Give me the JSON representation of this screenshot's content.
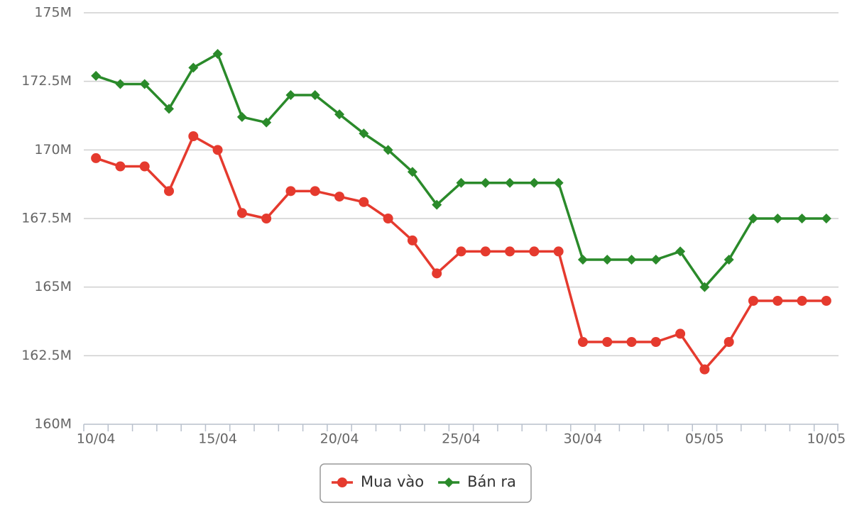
{
  "chart_data": {
    "type": "line",
    "categories": [
      "10/04",
      null,
      null,
      null,
      null,
      "15/04",
      null,
      null,
      null,
      null,
      "20/04",
      null,
      null,
      null,
      null,
      "25/04",
      null,
      null,
      null,
      null,
      "30/04",
      null,
      null,
      null,
      null,
      "05/05",
      null,
      null,
      null,
      null,
      "10/05"
    ],
    "series": [
      {
        "name": "Mua vào",
        "color": "#e53a2e",
        "marker": "circle",
        "values": [
          169700000,
          169400000,
          169400000,
          168500000,
          170500000,
          170000000,
          167700000,
          167500000,
          168500000,
          168500000,
          168300000,
          168100000,
          167500000,
          166700000,
          165500000,
          166300000,
          166300000,
          166300000,
          166300000,
          166300000,
          163000000,
          163000000,
          163000000,
          163000000,
          163300000,
          162000000,
          163000000,
          164500000,
          164500000,
          164500000,
          164500000
        ]
      },
      {
        "name": "Bán ra",
        "color": "#2a8a2a",
        "marker": "diamond",
        "values": [
          172700000,
          172400000,
          172400000,
          171500000,
          173000000,
          173500000,
          171200000,
          171000000,
          172000000,
          172000000,
          171300000,
          170600000,
          170000000,
          169200000,
          168000000,
          168800000,
          168800000,
          168800000,
          168800000,
          168800000,
          166000000,
          166000000,
          166000000,
          166000000,
          166300000,
          165000000,
          166000000,
          167500000,
          167500000,
          167500000,
          167500000
        ]
      }
    ],
    "ylim": [
      160000000,
      175000000
    ],
    "yticks": [
      {
        "value": 160000000,
        "label": "160M"
      },
      {
        "value": 162500000,
        "label": "162.5M"
      },
      {
        "value": 165000000,
        "label": "165M"
      },
      {
        "value": 167500000,
        "label": "167.5M"
      },
      {
        "value": 170000000,
        "label": "170M"
      },
      {
        "value": 172500000,
        "label": "172.5M"
      },
      {
        "value": 175000000,
        "label": "175M"
      }
    ],
    "grid": true,
    "legend": "bottom"
  }
}
